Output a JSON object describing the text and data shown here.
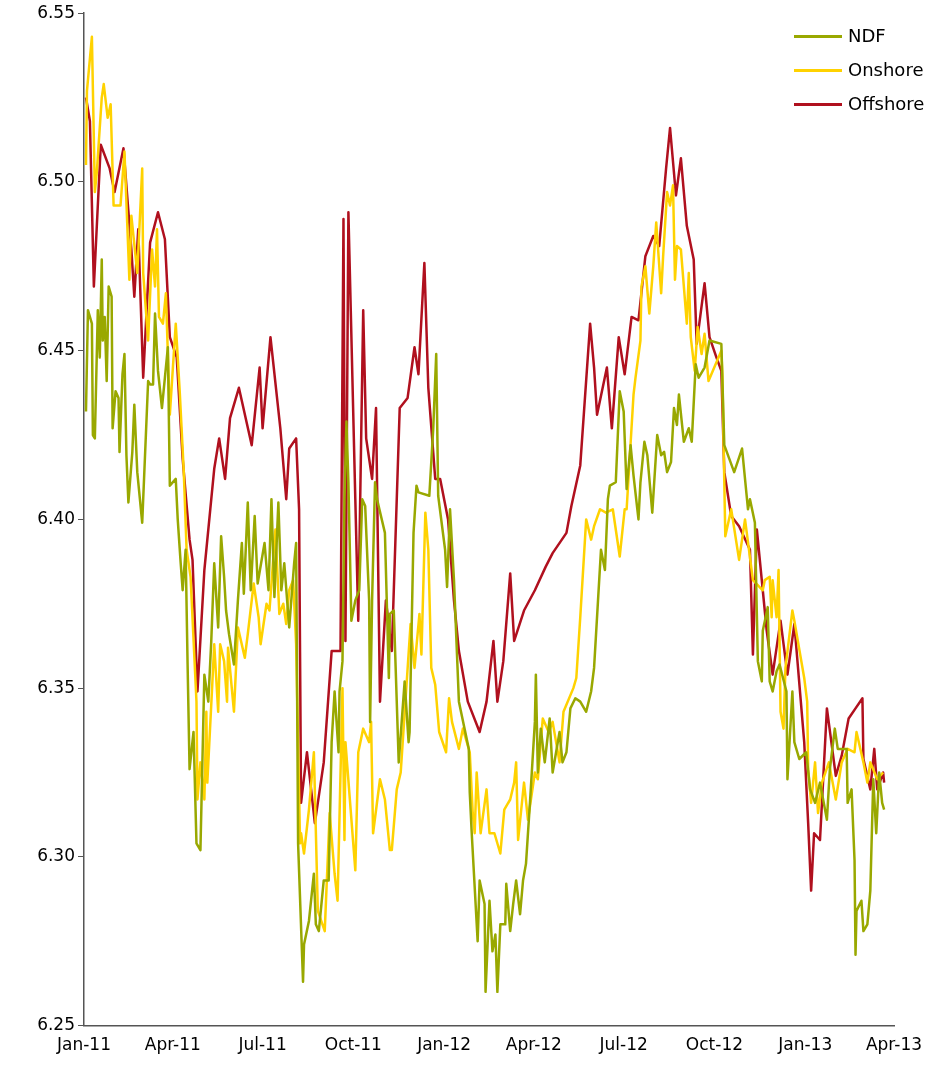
{
  "chart_data": {
    "type": "line",
    "legend": "top right",
    "marker": "none",
    "line_style": "solid",
    "xlim": [
      "2011-01",
      "2013-04"
    ],
    "xticks": [
      {
        "value": "2011-01",
        "label": "Jan-11"
      },
      {
        "value": "2011-04",
        "label": "Apr-11"
      },
      {
        "value": "2011-07",
        "label": "Jul-11"
      },
      {
        "value": "2011-10",
        "label": "Oct-11"
      },
      {
        "value": "2012-01",
        "label": "Jan-12"
      },
      {
        "value": "2012-04",
        "label": "Apr-12"
      },
      {
        "value": "2012-07",
        "label": "Jul-12"
      },
      {
        "value": "2012-10",
        "label": "Oct-12"
      },
      {
        "value": "2013-01",
        "label": "Jan-13"
      },
      {
        "value": "2013-04",
        "label": "Apr-13"
      }
    ],
    "ylim": [
      6.25,
      6.55
    ],
    "yticks": [
      6.25,
      {
        "value": 6.3,
        "label": "6.30"
      },
      6.35,
      {
        "value": 6.4,
        "label": "6.40"
      },
      6.45,
      {
        "value": 6.5,
        "label": "6.50"
      },
      6.55
    ],
    "series": [
      {
        "name": "NDF",
        "color": "#99a800",
        "x": [
          "2011-01-03",
          "2011-01-05",
          "2011-01-09",
          "2011-01-10",
          "2011-01-12",
          "2011-01-15",
          "2011-01-17",
          "2011-01-19",
          "2011-01-20",
          "2011-01-22",
          "2011-01-24",
          "2011-01-26",
          "2011-01-29",
          "2011-01-30",
          "2011-02-02",
          "2011-02-05",
          "2011-02-06",
          "2011-02-09",
          "2011-02-11",
          "2011-02-13",
          "2011-02-15",
          "2011-02-19",
          "2011-02-21",
          "2011-02-24",
          "2011-03-01",
          "2011-03-07",
          "2011-03-09",
          "2011-03-12",
          "2011-03-14",
          "2011-03-17",
          "2011-03-21",
          "2011-03-24",
          "2011-03-27",
          "2011-03-29",
          "2011-04-04",
          "2011-04-06",
          "2011-04-09",
          "2011-04-11",
          "2011-04-14",
          "2011-04-16",
          "2011-04-18",
          "2011-04-22",
          "2011-04-25",
          "2011-04-29",
          "2011-05-03",
          "2011-05-07",
          "2011-05-10",
          "2011-05-13",
          "2011-05-17",
          "2011-05-20",
          "2011-05-23",
          "2011-05-25",
          "2011-05-28",
          "2011-06-02",
          "2011-06-06",
          "2011-06-10",
          "2011-06-12",
          "2011-06-16",
          "2011-06-19",
          "2011-06-23",
          "2011-06-26",
          "2011-07-03",
          "2011-07-07",
          "2011-07-10",
          "2011-07-13",
          "2011-07-17",
          "2011-07-20",
          "2011-07-23",
          "2011-07-28",
          "2011-08-02",
          "2011-08-04",
          "2011-08-06",
          "2011-08-11",
          "2011-08-12",
          "2011-08-17",
          "2011-08-22",
          "2011-08-24",
          "2011-08-27",
          "2011-09-01",
          "2011-09-06",
          "2011-09-09",
          "2011-09-12",
          "2011-09-16",
          "2011-09-17",
          "2011-09-20",
          "2011-09-22",
          "2011-09-24",
          "2011-09-26",
          "2011-09-29",
          "2011-10-03",
          "2011-10-07",
          "2011-10-10",
          "2011-10-13",
          "2011-10-17",
          "2011-10-18",
          "2011-10-20",
          "2011-10-23",
          "2011-10-25",
          "2011-11-02",
          "2011-11-06",
          "2011-11-07",
          "2011-11-11",
          "2011-11-16",
          "2011-11-19",
          "2011-11-22",
          "2011-11-26",
          "2011-11-27",
          "2011-12-01",
          "2011-12-04",
          "2011-12-06",
          "2011-12-17",
          "2011-12-21",
          "2011-12-24",
          "2011-12-26",
          "2012-01-02",
          "2012-01-04",
          "2012-01-07",
          "2012-01-11",
          "2012-01-16",
          "2012-01-26",
          "2012-01-27",
          "2012-01-29",
          "2012-02-04",
          "2012-02-06",
          "2012-02-11",
          "2012-02-12",
          "2012-02-16",
          "2012-02-19",
          "2012-02-22",
          "2012-02-24",
          "2012-02-27",
          "2012-03-03",
          "2012-03-04",
          "2012-03-08",
          "2012-03-11",
          "2012-03-14",
          "2012-03-18",
          "2012-03-21",
          "2012-03-24",
          "2012-03-28",
          "2012-04-02",
          "2012-04-03",
          "2012-04-05",
          "2012-04-08",
          "2012-04-12",
          "2012-04-17",
          "2012-04-20",
          "2012-04-27",
          "2012-04-30",
          "2012-05-04",
          "2012-05-08",
          "2012-05-13",
          "2012-05-18",
          "2012-05-24",
          "2012-05-29",
          "2012-06-01",
          "2012-06-05",
          "2012-06-08",
          "2012-06-12",
          "2012-06-15",
          "2012-06-17",
          "2012-06-23",
          "2012-06-27",
          "2012-07-01",
          "2012-07-04",
          "2012-07-08",
          "2012-07-11",
          "2012-07-16",
          "2012-07-18",
          "2012-07-22",
          "2012-07-25",
          "2012-07-30",
          "2012-08-04",
          "2012-08-08",
          "2012-08-11",
          "2012-08-14",
          "2012-08-18",
          "2012-08-21",
          "2012-08-24",
          "2012-08-26",
          "2012-08-31",
          "2012-09-05",
          "2012-09-08",
          "2012-09-12",
          "2012-09-15",
          "2012-09-21",
          "2012-09-26",
          "2012-10-08",
          "2012-10-11",
          "2012-10-16",
          "2012-10-21",
          "2012-10-29",
          "2012-11-04",
          "2012-11-06",
          "2012-11-11",
          "2012-11-14",
          "2012-11-18",
          "2012-11-19",
          "2012-11-24",
          "2012-11-26",
          "2012-11-29",
          "2012-12-03",
          "2012-12-06",
          "2012-12-13",
          "2012-12-14",
          "2012-12-19",
          "2012-12-21",
          "2012-12-26",
          "2013-01-02",
          "2013-01-06",
          "2013-01-11",
          "2013-01-16",
          "2013-01-23",
          "2013-01-26",
          "2013-01-31",
          "2013-02-03",
          "2013-02-12",
          "2013-02-13",
          "2013-02-17",
          "2013-02-20",
          "2013-02-21",
          "2013-02-22",
          "2013-02-27",
          "2013-03-01",
          "2013-03-05",
          "2013-03-08",
          "2013-03-11",
          "2013-03-14",
          "2013-03-17",
          "2013-03-20",
          "2013-03-22"
        ],
        "values": [
          6.432,
          6.462,
          6.458,
          6.425,
          6.424,
          6.462,
          6.448,
          6.477,
          6.453,
          6.46,
          6.441,
          6.469,
          6.466,
          6.427,
          6.438,
          6.436,
          6.42,
          6.443,
          6.449,
          6.419,
          6.405,
          6.42,
          6.434,
          6.414,
          6.399,
          6.441,
          6.44,
          6.44,
          6.461,
          6.444,
          6.433,
          6.442,
          6.451,
          6.41,
          6.412,
          6.4,
          6.387,
          6.379,
          6.391,
          6.357,
          6.326,
          6.337,
          6.304,
          6.302,
          6.354,
          6.346,
          6.364,
          6.387,
          6.368,
          6.395,
          6.383,
          6.373,
          6.366,
          6.357,
          6.376,
          6.393,
          6.378,
          6.405,
          6.379,
          6.401,
          6.381,
          6.393,
          6.379,
          6.406,
          6.377,
          6.405,
          6.379,
          6.387,
          6.368,
          6.387,
          6.393,
          6.304,
          6.263,
          6.274,
          6.281,
          6.295,
          6.28,
          6.278,
          6.293,
          6.293,
          6.334,
          6.349,
          6.331,
          6.349,
          6.358,
          6.406,
          6.429,
          6.411,
          6.37,
          6.376,
          6.379,
          6.406,
          6.404,
          6.376,
          6.34,
          6.376,
          6.411,
          6.406,
          6.396,
          6.353,
          6.372,
          6.373,
          6.328,
          6.34,
          6.352,
          6.334,
          6.337,
          6.396,
          6.41,
          6.408,
          6.407,
          6.427,
          6.449,
          6.407,
          6.391,
          6.38,
          6.403,
          6.382,
          6.346,
          6.332,
          6.319,
          6.307,
          6.275,
          6.293,
          6.286,
          6.26,
          6.287,
          6.272,
          6.277,
          6.26,
          6.28,
          6.28,
          6.292,
          6.278,
          6.286,
          6.293,
          6.283,
          6.293,
          6.298,
          6.316,
          6.34,
          6.354,
          6.325,
          6.338,
          6.328,
          6.341,
          6.325,
          6.337,
          6.328,
          6.331,
          6.344,
          6.347,
          6.346,
          6.343,
          6.349,
          6.356,
          6.376,
          6.391,
          6.385,
          6.406,
          6.41,
          6.411,
          6.438,
          6.432,
          6.409,
          6.422,
          6.413,
          6.4,
          6.411,
          6.423,
          6.419,
          6.402,
          6.425,
          6.419,
          6.42,
          6.414,
          6.417,
          6.433,
          6.428,
          6.437,
          6.423,
          6.427,
          6.423,
          6.446,
          6.442,
          6.445,
          6.453,
          6.452,
          6.422,
          6.418,
          6.414,
          6.421,
          6.403,
          6.406,
          6.399,
          6.358,
          6.352,
          6.367,
          6.374,
          6.352,
          6.349,
          6.355,
          6.357,
          6.349,
          6.323,
          6.349,
          6.334,
          6.329,
          6.331,
          6.32,
          6.316,
          6.322,
          6.311,
          6.326,
          6.338,
          6.332,
          6.332,
          6.316,
          6.32,
          6.299,
          6.271,
          6.284,
          6.287,
          6.278,
          6.28,
          6.29,
          6.323,
          6.307,
          6.325,
          6.316,
          6.314
        ]
      },
      {
        "name": "Onshore",
        "color": "#ffd200",
        "x": [
          "2011-01-03",
          "2011-01-04",
          "2011-01-09",
          "2011-01-12",
          "2011-01-14",
          "2011-01-19",
          "2011-01-21",
          "2011-01-25",
          "2011-01-28",
          "2011-01-31",
          "2011-02-07",
          "2011-02-11",
          "2011-02-16",
          "2011-02-18",
          "2011-02-24",
          "2011-03-01",
          "2011-03-02",
          "2011-03-07",
          "2011-03-11",
          "2011-03-14",
          "2011-03-16",
          "2011-03-18",
          "2011-03-22",
          "2011-03-25",
          "2011-03-29",
          "2011-04-04",
          "2011-04-08",
          "2011-04-12",
          "2011-04-15",
          "2011-04-19",
          "2011-04-25",
          "2011-04-26",
          "2011-04-29",
          "2011-05-03",
          "2011-05-05",
          "2011-05-06",
          "2011-05-11",
          "2011-05-13",
          "2011-05-17",
          "2011-05-19",
          "2011-05-23",
          "2011-05-26",
          "2011-05-27",
          "2011-06-02",
          "2011-06-06",
          "2011-06-13",
          "2011-06-16",
          "2011-06-22",
          "2011-06-27",
          "2011-06-29",
          "2011-07-05",
          "2011-07-08",
          "2011-07-14",
          "2011-07-18",
          "2011-07-22",
          "2011-07-25",
          "2011-07-28",
          "2011-08-01",
          "2011-08-04",
          "2011-08-08",
          "2011-08-09",
          "2011-08-12",
          "2011-08-17",
          "2011-08-22",
          "2011-08-26",
          "2011-09-02",
          "2011-09-07",
          "2011-09-12",
          "2011-09-15",
          "2011-09-20",
          "2011-09-22",
          "2011-09-23",
          "2011-10-03",
          "2011-10-06",
          "2011-10-11",
          "2011-10-17",
          "2011-10-19",
          "2011-10-21",
          "2011-10-28",
          "2011-11-02",
          "2011-11-07",
          "2011-11-09",
          "2011-11-14",
          "2011-11-18",
          "2011-11-28",
          "2011-12-02",
          "2011-12-07",
          "2011-12-09",
          "2011-12-13",
          "2011-12-16",
          "2011-12-19",
          "2011-12-23",
          "2011-12-27",
          "2012-01-03",
          "2012-01-06",
          "2012-01-09",
          "2012-01-16",
          "2012-01-20",
          "2012-01-27",
          "2012-01-30",
          "2012-02-01",
          "2012-02-03",
          "2012-02-07",
          "2012-02-13",
          "2012-02-16",
          "2012-02-21",
          "2012-02-27",
          "2012-03-02",
          "2012-03-08",
          "2012-03-12",
          "2012-03-14",
          "2012-03-16",
          "2012-03-22",
          "2012-03-26",
          "2012-04-02",
          "2012-04-05",
          "2012-04-10",
          "2012-04-16",
          "2012-04-20",
          "2012-04-27",
          "2012-05-01",
          "2012-05-11",
          "2012-05-14",
          "2012-05-18",
          "2012-05-24",
          "2012-05-29",
          "2012-06-01",
          "2012-06-07",
          "2012-06-13",
          "2012-06-20",
          "2012-06-27",
          "2012-07-02",
          "2012-07-04",
          "2012-07-11",
          "2012-07-13",
          "2012-07-18",
          "2012-07-19",
          "2012-07-23",
          "2012-07-27",
          "2012-07-31",
          "2012-08-03",
          "2012-08-08",
          "2012-08-10",
          "2012-08-14",
          "2012-08-17",
          "2012-08-20",
          "2012-08-22",
          "2012-08-24",
          "2012-08-28",
          "2012-09-03",
          "2012-09-05",
          "2012-09-07",
          "2012-09-11",
          "2012-09-14",
          "2012-09-18",
          "2012-09-21",
          "2012-09-25",
          "2012-10-08",
          "2012-10-09",
          "2012-10-12",
          "2012-10-18",
          "2012-10-26",
          "2012-11-01",
          "2012-11-09",
          "2012-11-19",
          "2012-11-21",
          "2012-11-26",
          "2012-11-28",
          "2012-11-29",
          "2012-12-03",
          "2012-12-05",
          "2012-12-07",
          "2012-12-10",
          "2012-12-12",
          "2012-12-19",
          "2012-12-21",
          "2012-12-31",
          "2013-01-03",
          "2013-01-04",
          "2013-01-07",
          "2013-01-11",
          "2013-01-14",
          "2013-01-18",
          "2013-01-25",
          "2013-02-01",
          "2013-02-07",
          "2013-02-13",
          "2013-02-20",
          "2013-02-22",
          "2013-03-01",
          "2013-03-05",
          "2013-03-08",
          "2013-03-15",
          "2013-03-21"
        ],
        "values": [
          6.505,
          6.527,
          6.543,
          6.497,
          6.503,
          6.525,
          6.529,
          6.519,
          6.523,
          6.493,
          6.493,
          6.509,
          6.471,
          6.49,
          6.473,
          6.504,
          6.473,
          6.453,
          6.48,
          6.469,
          6.486,
          6.46,
          6.458,
          6.467,
          6.431,
          6.458,
          6.438,
          6.415,
          6.391,
          6.383,
          6.346,
          6.317,
          6.328,
          6.317,
          6.343,
          6.322,
          6.351,
          6.363,
          6.343,
          6.363,
          6.358,
          6.346,
          6.362,
          6.343,
          6.368,
          6.359,
          6.366,
          6.381,
          6.371,
          6.363,
          6.375,
          6.373,
          6.397,
          6.372,
          6.375,
          6.369,
          6.379,
          6.382,
          6.363,
          6.304,
          6.307,
          6.301,
          6.314,
          6.331,
          6.284,
          6.278,
          6.313,
          6.295,
          6.287,
          6.35,
          6.305,
          6.334,
          6.296,
          6.331,
          6.338,
          6.334,
          6.34,
          6.307,
          6.323,
          6.317,
          6.302,
          6.302,
          6.32,
          6.325,
          6.369,
          6.356,
          6.372,
          6.36,
          6.402,
          6.391,
          6.356,
          6.351,
          6.337,
          6.331,
          6.347,
          6.34,
          6.332,
          6.338,
          6.331,
          6.313,
          6.307,
          6.325,
          6.307,
          6.32,
          6.307,
          6.307,
          6.301,
          6.314,
          6.317,
          6.322,
          6.328,
          6.305,
          6.322,
          6.311,
          6.325,
          6.323,
          6.341,
          6.337,
          6.34,
          6.328,
          6.343,
          6.35,
          6.353,
          6.371,
          6.4,
          6.394,
          6.398,
          6.403,
          6.402,
          6.403,
          6.389,
          6.403,
          6.403,
          6.437,
          6.442,
          6.453,
          6.469,
          6.475,
          6.461,
          6.475,
          6.488,
          6.467,
          6.478,
          6.497,
          6.493,
          6.499,
          6.471,
          6.481,
          6.48,
          6.458,
          6.473,
          6.454,
          6.444,
          6.457,
          6.449,
          6.455,
          6.441,
          6.45,
          6.443,
          6.395,
          6.403,
          6.388,
          6.4,
          6.382,
          6.379,
          6.382,
          6.383,
          6.371,
          6.382,
          6.371,
          6.385,
          6.343,
          6.338,
          6.356,
          6.373,
          6.37,
          6.353,
          6.346,
          6.326,
          6.316,
          6.328,
          6.313,
          6.322,
          6.328,
          6.317,
          6.328,
          6.332,
          6.331,
          6.337,
          6.328,
          6.322,
          6.328,
          6.323,
          6.325
        ]
      },
      {
        "name": "Offshore",
        "color": "#b0101e",
        "x": [
          "2011-01-03",
          "2011-01-07",
          "2011-01-11",
          "2011-01-18",
          "2011-01-27",
          "2011-02-01",
          "2011-02-10",
          "2011-02-18",
          "2011-02-21",
          "2011-02-25",
          "2011-03-02",
          "2011-03-09",
          "2011-03-17",
          "2011-03-24",
          "2011-03-29",
          "2011-04-05",
          "2011-04-11",
          "2011-04-18",
          "2011-04-21",
          "2011-04-26",
          "2011-05-03",
          "2011-05-13",
          "2011-05-18",
          "2011-05-24",
          "2011-05-29",
          "2011-06-07",
          "2011-06-20",
          "2011-06-28",
          "2011-07-01",
          "2011-07-09",
          "2011-07-19",
          "2011-07-25",
          "2011-07-28",
          "2011-08-04",
          "2011-08-07",
          "2011-08-09",
          "2011-08-15",
          "2011-08-23",
          "2011-09-01",
          "2011-09-09",
          "2011-09-18",
          "2011-09-21",
          "2011-09-23",
          "2011-09-26",
          "2011-10-03",
          "2011-10-06",
          "2011-10-11",
          "2011-10-14",
          "2011-10-20",
          "2011-10-24",
          "2011-10-28",
          "2011-11-03",
          "2011-11-09",
          "2011-11-17",
          "2011-11-25",
          "2011-12-02",
          "2011-12-06",
          "2011-12-12",
          "2011-12-16",
          "2011-12-23",
          "2011-12-28",
          "2012-01-05",
          "2012-01-11",
          "2012-01-16",
          "2012-01-25",
          "2012-02-06",
          "2012-02-13",
          "2012-02-20",
          "2012-02-24",
          "2012-03-01",
          "2012-03-08",
          "2012-03-12",
          "2012-03-22",
          "2012-04-02",
          "2012-04-13",
          "2012-04-20",
          "2012-05-04",
          "2012-05-09",
          "2012-05-18",
          "2012-05-28",
          "2012-06-01",
          "2012-06-04",
          "2012-06-14",
          "2012-06-19",
          "2012-06-26",
          "2012-07-02",
          "2012-07-09",
          "2012-07-16",
          "2012-07-23",
          "2012-07-31",
          "2012-08-06",
          "2012-08-13",
          "2012-08-17",
          "2012-08-23",
          "2012-08-28",
          "2012-09-03",
          "2012-09-10",
          "2012-09-13",
          "2012-09-21",
          "2012-09-26",
          "2012-10-03",
          "2012-10-08",
          "2012-10-11",
          "2012-10-18",
          "2012-10-26",
          "2012-11-06",
          "2012-11-09",
          "2012-11-13",
          "2012-11-23",
          "2012-11-29",
          "2012-12-07",
          "2012-12-14",
          "2012-12-21",
          "2012-12-31",
          "2013-01-04",
          "2013-01-07",
          "2013-01-10",
          "2013-01-16",
          "2013-01-23",
          "2013-02-01",
          "2013-02-07",
          "2013-02-14",
          "2013-02-21",
          "2013-02-28",
          "2013-03-01",
          "2013-03-08",
          "2013-03-12",
          "2013-03-15",
          "2013-03-21",
          "2013-03-22"
        ],
        "values": [
          6.525,
          6.518,
          6.469,
          6.511,
          6.504,
          6.497,
          6.51,
          6.48,
          6.466,
          6.486,
          6.442,
          6.482,
          6.491,
          6.483,
          6.454,
          6.448,
          6.418,
          6.394,
          6.388,
          6.349,
          6.385,
          6.415,
          6.424,
          6.412,
          6.43,
          6.439,
          6.422,
          6.445,
          6.427,
          6.454,
          6.427,
          6.406,
          6.421,
          6.424,
          6.403,
          6.316,
          6.331,
          6.31,
          6.328,
          6.361,
          6.361,
          6.489,
          6.364,
          6.491,
          6.406,
          6.37,
          6.462,
          6.424,
          6.412,
          6.433,
          6.346,
          6.376,
          6.361,
          6.433,
          6.436,
          6.451,
          6.443,
          6.476,
          6.439,
          6.412,
          6.412,
          6.4,
          6.376,
          6.361,
          6.346,
          6.337,
          6.346,
          6.364,
          6.346,
          6.358,
          6.384,
          6.364,
          6.373,
          6.379,
          6.386,
          6.39,
          6.396,
          6.404,
          6.416,
          6.458,
          6.445,
          6.431,
          6.445,
          6.427,
          6.454,
          6.443,
          6.46,
          6.459,
          6.478,
          6.484,
          6.481,
          6.504,
          6.516,
          6.496,
          6.507,
          6.487,
          6.477,
          6.452,
          6.47,
          6.454,
          6.448,
          6.444,
          6.414,
          6.401,
          6.398,
          6.391,
          6.36,
          6.397,
          6.367,
          6.354,
          6.37,
          6.354,
          6.369,
          6.334,
          6.31,
          6.29,
          6.307,
          6.305,
          6.344,
          6.324,
          6.33,
          6.341,
          6.344,
          6.347,
          6.329,
          6.32,
          6.332,
          6.32,
          6.325,
          6.322
        ]
      }
    ]
  }
}
